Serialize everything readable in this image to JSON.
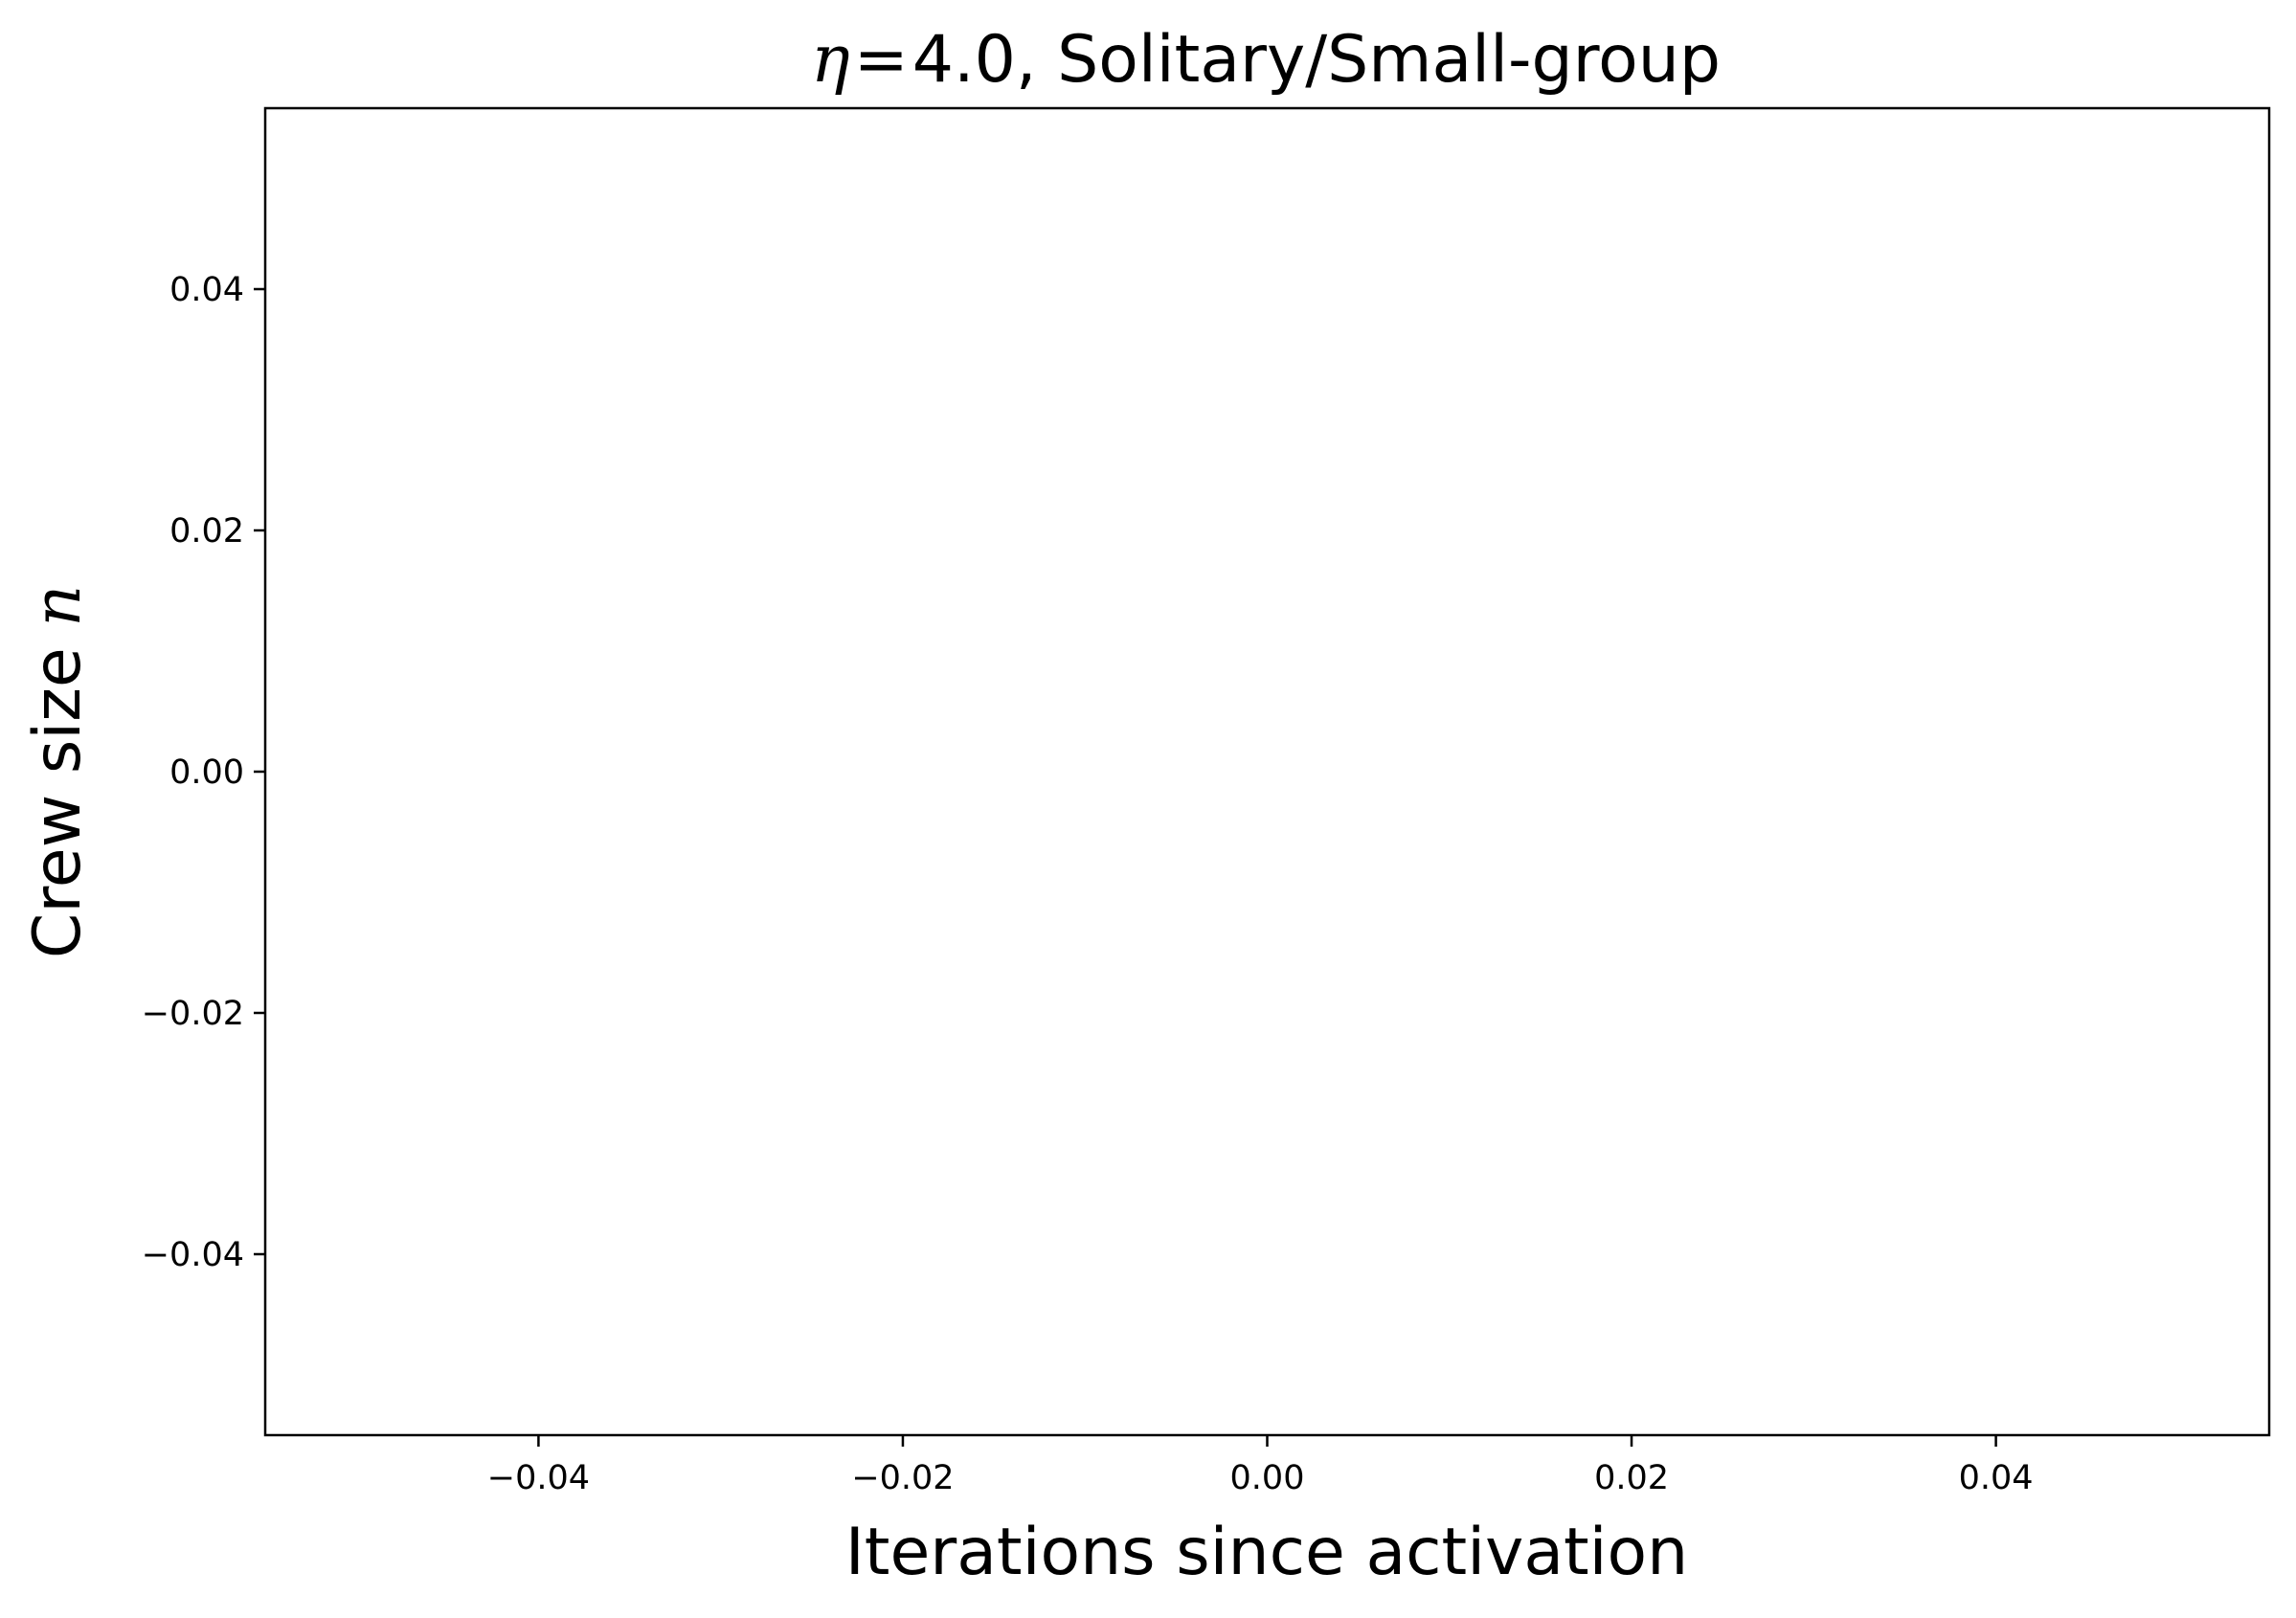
{
  "chart_data": {
    "type": "line",
    "title": {
      "symbol": "η",
      "equals": "=",
      "rest": "4.0, Solitary/Small-group"
    },
    "xlabel": "Iterations since activation",
    "ylabel": {
      "text": "Crew size ",
      "symbol": "n"
    },
    "xlim": [
      -0.055,
      0.055
    ],
    "ylim": [
      -0.055,
      0.055
    ],
    "xticks": [
      {
        "value": -0.04,
        "label": "−0.04"
      },
      {
        "value": -0.02,
        "label": "−0.02"
      },
      {
        "value": 0.0,
        "label": "0.00"
      },
      {
        "value": 0.02,
        "label": "0.02"
      },
      {
        "value": 0.04,
        "label": "0.04"
      }
    ],
    "yticks": [
      {
        "value": -0.04,
        "label": "−0.04"
      },
      {
        "value": -0.02,
        "label": "−0.02"
      },
      {
        "value": 0.0,
        "label": "0.00"
      },
      {
        "value": 0.02,
        "label": "0.02"
      },
      {
        "value": 0.04,
        "label": "0.04"
      }
    ],
    "grid": false,
    "series": []
  }
}
